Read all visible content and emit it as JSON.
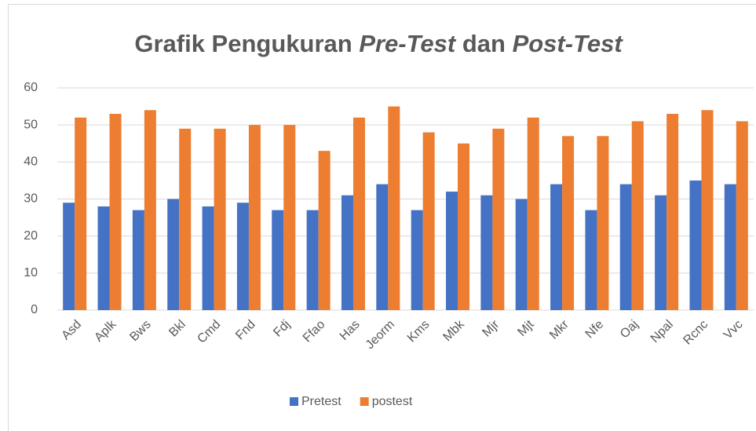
{
  "chart_data": {
    "type": "bar",
    "title": [
      {
        "text": "Grafik Pengukuran "
      },
      {
        "text": "Pre-Test",
        "italic": true
      },
      {
        "text": " dan "
      },
      {
        "text": "Post-Test",
        "italic": true
      }
    ],
    "categories": [
      "Asd",
      "Aplk",
      "Bws",
      "Bkl",
      "Cmd",
      "Fnd",
      "Fdj",
      "Ffao",
      "Has",
      "Jeorm",
      "Kms",
      "Mbk",
      "Mjr",
      "Mjt",
      "Mkr",
      "Nfe",
      "Oaj",
      "Npal",
      "Rcnc",
      "Vvc"
    ],
    "series": [
      {
        "name": "Pretest",
        "color": "#4472c4",
        "values": [
          29,
          28,
          27,
          30,
          28,
          29,
          27,
          27,
          31,
          34,
          27,
          32,
          31,
          30,
          34,
          27,
          34,
          31,
          35,
          34
        ]
      },
      {
        "name": "postest",
        "color": "#ed7d31",
        "values": [
          52,
          53,
          54,
          49,
          49,
          50,
          50,
          43,
          52,
          55,
          48,
          45,
          49,
          52,
          47,
          47,
          51,
          53,
          54,
          51
        ]
      }
    ],
    "ylim": [
      0,
      60
    ],
    "yticks": [
      0,
      10,
      20,
      30,
      40,
      50,
      60
    ],
    "grid": true,
    "legend": "bottom"
  }
}
